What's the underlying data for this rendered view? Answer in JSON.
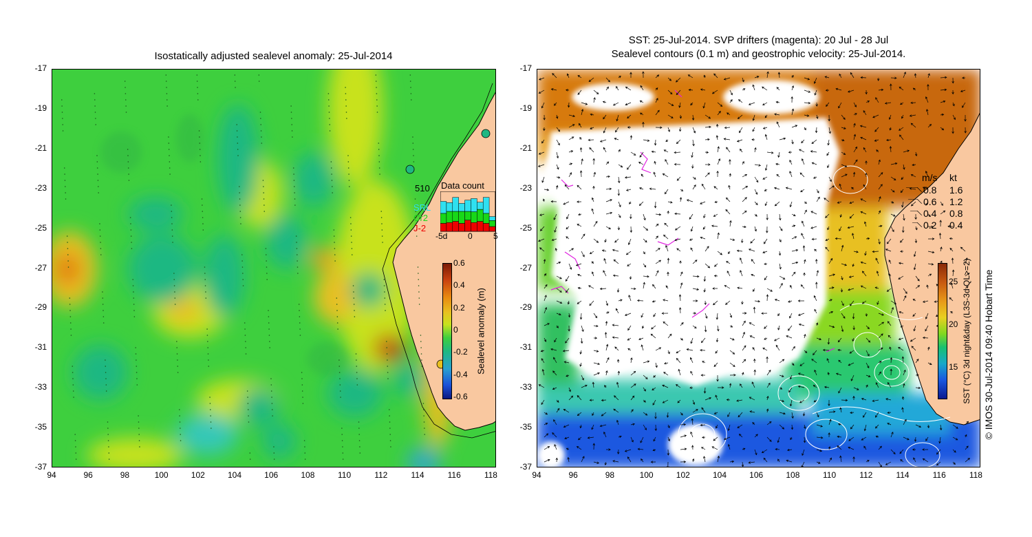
{
  "left": {
    "title": "Isostatically adjusted sealevel anomaly: 25-Jul-2014",
    "colorbar": {
      "label": "Sealevel anomaly (m)",
      "ticks": [
        "0.6",
        "0.4",
        "0.2",
        "0",
        "-0.2",
        "-0.4",
        "-0.6"
      ]
    },
    "data_count": {
      "label": "Data count",
      "max_value": "510",
      "series": [
        {
          "name": "SRL",
          "color": "#2fe0f0"
        },
        {
          "name": "Cr2",
          "color": "#18d818"
        },
        {
          "name": "J-2",
          "color": "#ee0000"
        }
      ],
      "xticks": [
        "-5d",
        "0",
        "5"
      ],
      "bars": [
        {
          "srl": 0.3,
          "cr2": 0.25,
          "j2": 0.2
        },
        {
          "srl": 0.22,
          "cr2": 0.28,
          "j2": 0.22
        },
        {
          "srl": 0.35,
          "cr2": 0.25,
          "j2": 0.25
        },
        {
          "srl": 0.2,
          "cr2": 0.3,
          "j2": 0.2
        },
        {
          "srl": 0.28,
          "cr2": 0.22,
          "j2": 0.28
        },
        {
          "srl": 0.33,
          "cr2": 0.27,
          "j2": 0.22
        },
        {
          "srl": 0.18,
          "cr2": 0.3,
          "j2": 0.25
        },
        {
          "srl": 0.4,
          "cr2": 0.25,
          "j2": 0.2
        },
        {
          "srl": 0.1,
          "cr2": 0.15,
          "j2": 0.12
        }
      ]
    }
  },
  "right": {
    "title_line1": "SST: 25-Jul-2014. SVP drifters (magenta): 20 Jul - 28 Jul",
    "title_line2": "Sealevel contours (0.1 m) and geostrophic velocity: 25-Jul-2014.",
    "colorbar": {
      "label": "SST (°C) 3d night&day (L3S-3d QL>=2)",
      "ticks": [
        "25",
        "20",
        "15"
      ]
    },
    "velocity_legend": {
      "header_ms": "m/s",
      "header_kt": "kt",
      "rows": [
        {
          "ms": "0.8",
          "kt": "1.6"
        },
        {
          "ms": "0.6",
          "kt": "1.2"
        },
        {
          "ms": "0.4",
          "kt": "0.8"
        },
        {
          "ms": "0.2",
          "kt": "0.4"
        }
      ]
    },
    "credit": "© IMOS 30-Jul-2014 09:40 Hobart Time"
  },
  "axes": {
    "y_ticks": [
      "-17",
      "-19",
      "-21",
      "-23",
      "-25",
      "-27",
      "-29",
      "-31",
      "-33",
      "-35",
      "-37"
    ],
    "x_ticks": [
      "94",
      "96",
      "98",
      "100",
      "102",
      "104",
      "106",
      "108",
      "110",
      "112",
      "114",
      "116",
      "118"
    ]
  },
  "colors": {
    "land": "#f9c8a0",
    "ssh_base": "#3ecf3e",
    "ssh_high": "#c8e21e",
    "ssh_low": "#1fb882",
    "sst_warm": "#d77a10",
    "sst_cold": "#1a58e0"
  }
}
